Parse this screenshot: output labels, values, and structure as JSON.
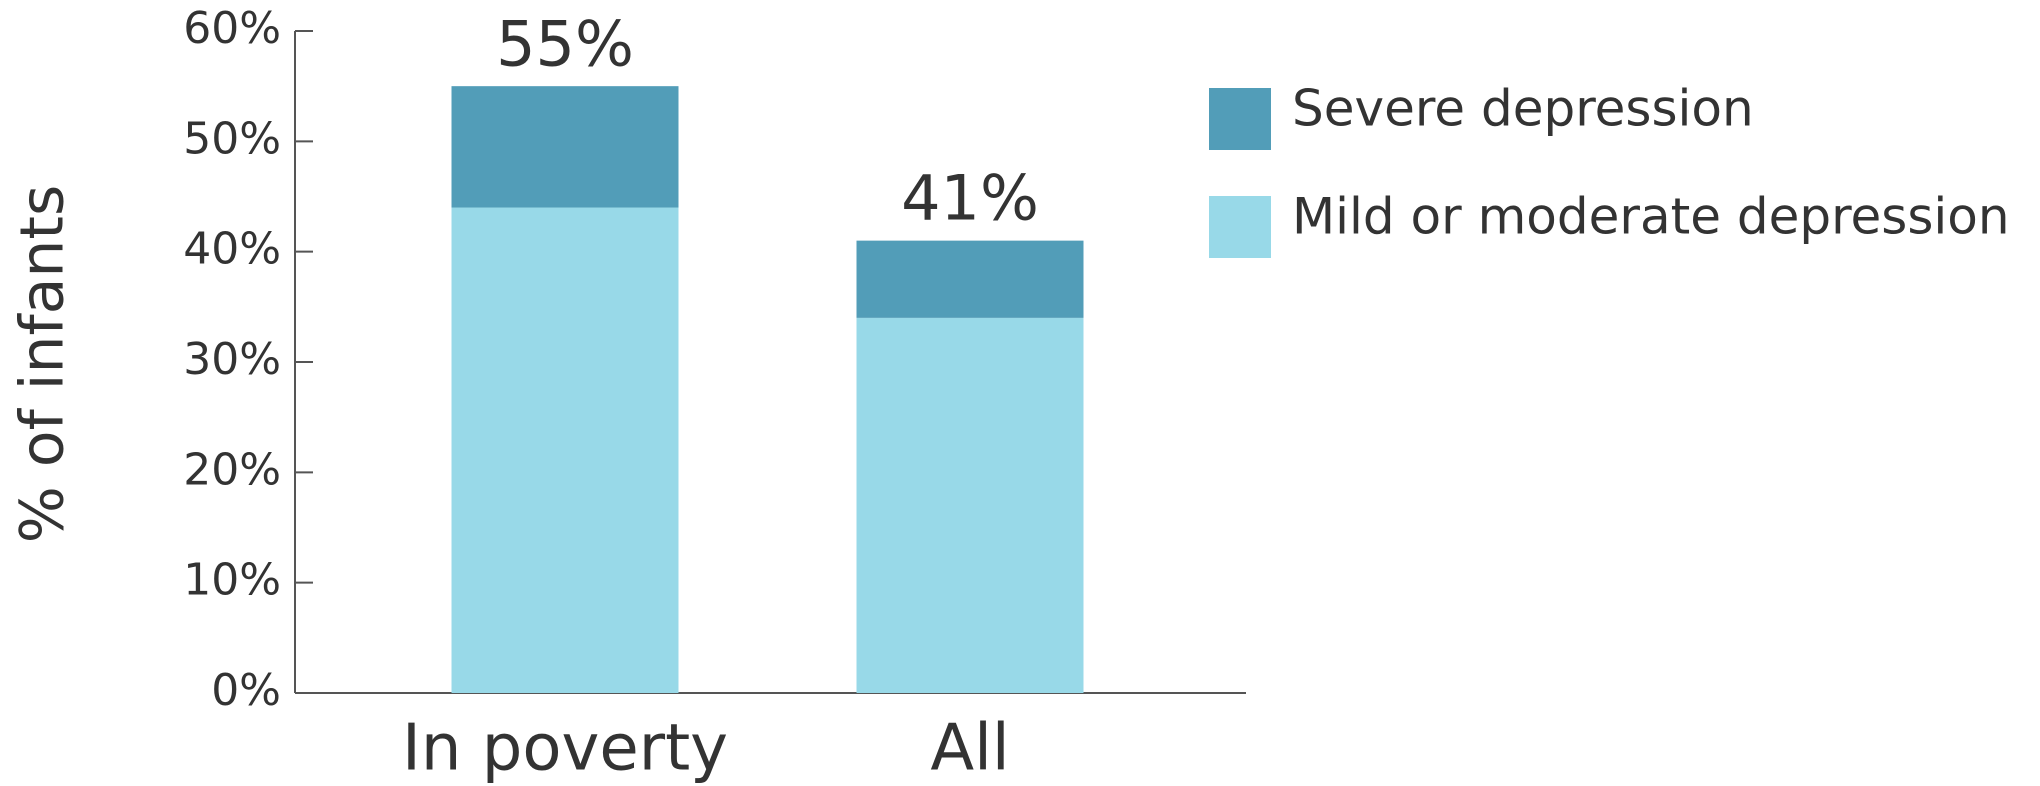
{
  "chart_data": {
    "type": "stacked_bar",
    "y_label": "% of infants",
    "categories": [
      "In poverty",
      "All"
    ],
    "series": [
      {
        "name": "Mild or moderate depression",
        "color": "#98d9e8",
        "values": [
          44,
          34
        ]
      },
      {
        "name": "Severe depression",
        "color": "#529db8",
        "values": [
          11,
          7
        ]
      }
    ],
    "totals": [
      55,
      41
    ],
    "total_labels": [
      "55%",
      "41%"
    ],
    "ylim": [
      0,
      60
    ],
    "yticks": [
      {
        "value": 0,
        "label": "0%"
      },
      {
        "value": 10,
        "label": "10%"
      },
      {
        "value": 20,
        "label": "20%"
      },
      {
        "value": 30,
        "label": "30%"
      },
      {
        "value": 40,
        "label": "40%"
      },
      {
        "value": 50,
        "label": "50%"
      },
      {
        "value": 60,
        "label": "60%"
      }
    ],
    "legend": "top-right"
  }
}
